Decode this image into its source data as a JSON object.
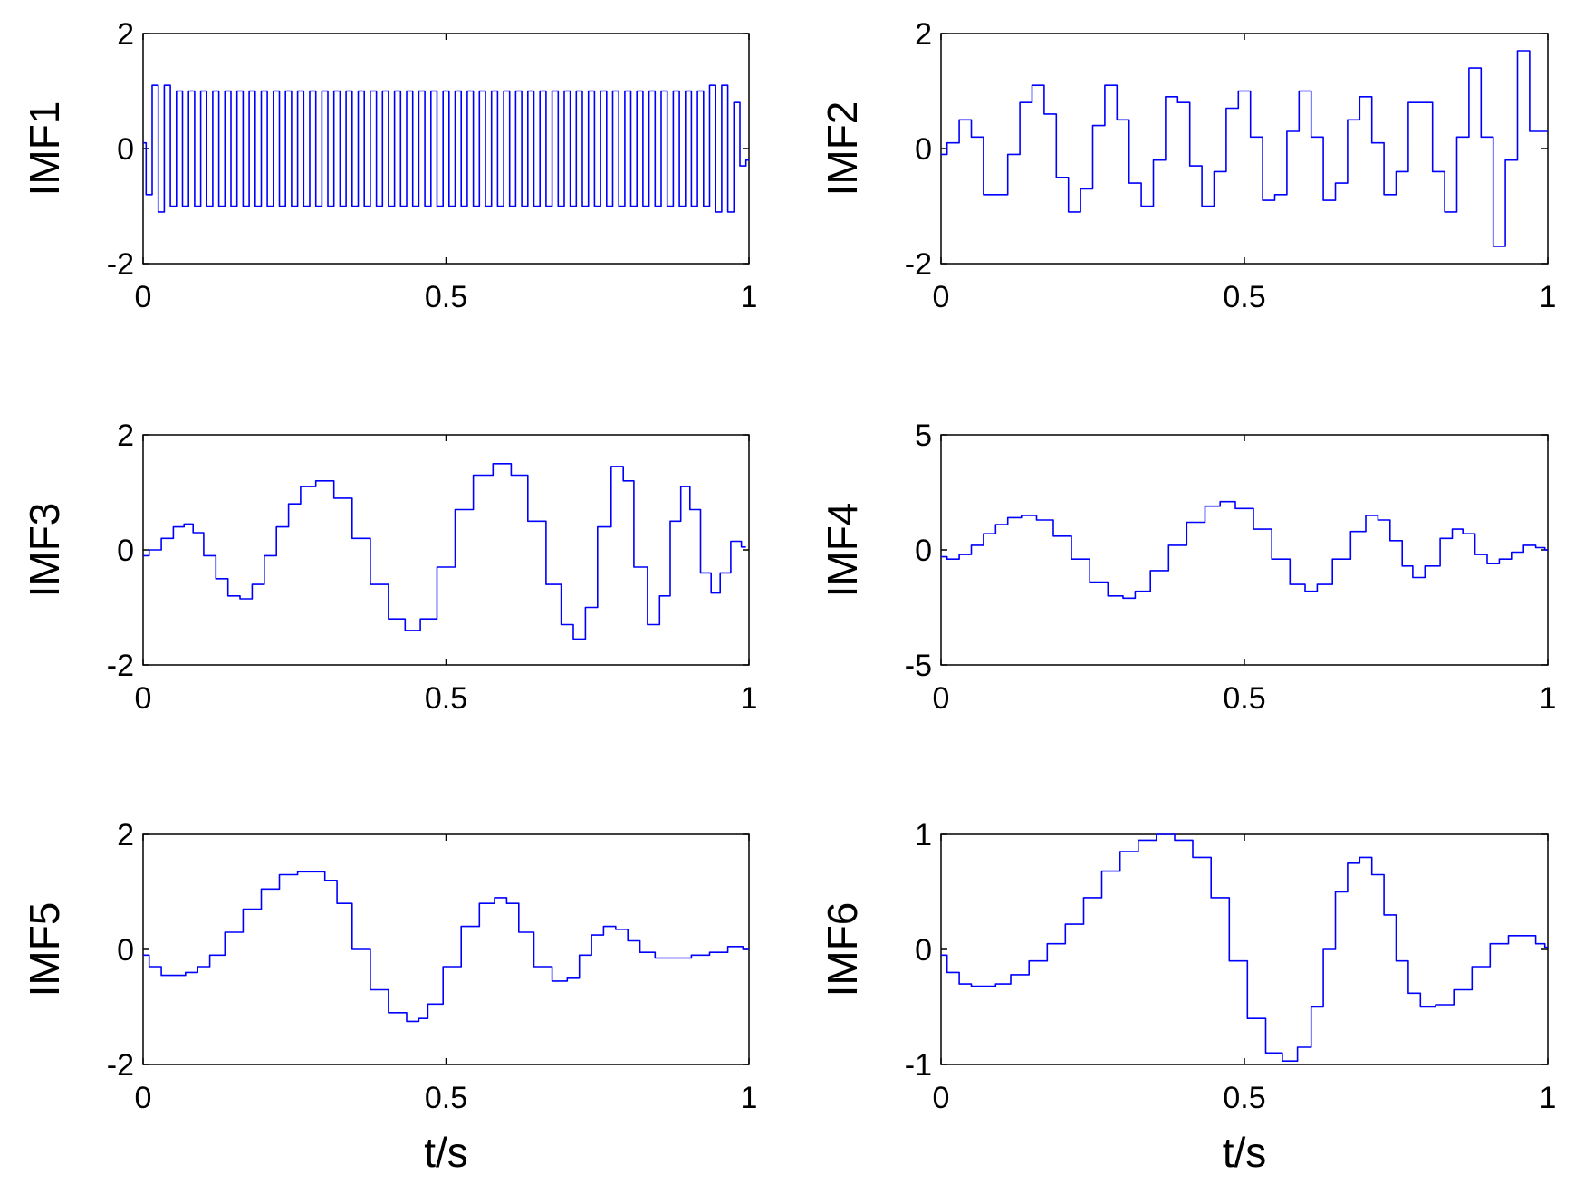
{
  "chart_data": [
    {
      "type": "line",
      "ylabel": "IMF1",
      "xlabel": "",
      "xlim": [
        0,
        1
      ],
      "ylim": [
        -2,
        2
      ],
      "xticks": [
        "0",
        "0.5",
        "1"
      ],
      "yticks": [
        "-2",
        "0",
        "2"
      ],
      "color": "#0000ff",
      "x": [
        0,
        0.01,
        0.02,
        0.03,
        0.04,
        0.05,
        0.06,
        0.07,
        0.08,
        0.09,
        0.1,
        0.11,
        0.12,
        0.13,
        0.14,
        0.15,
        0.16,
        0.17,
        0.18,
        0.19,
        0.2,
        0.21,
        0.22,
        0.23,
        0.24,
        0.25,
        0.26,
        0.27,
        0.28,
        0.29,
        0.3,
        0.31,
        0.32,
        0.33,
        0.34,
        0.35,
        0.36,
        0.37,
        0.38,
        0.39,
        0.4,
        0.41,
        0.42,
        0.43,
        0.44,
        0.45,
        0.46,
        0.47,
        0.48,
        0.49,
        0.5,
        0.51,
        0.52,
        0.53,
        0.54,
        0.55,
        0.56,
        0.57,
        0.58,
        0.59,
        0.6,
        0.61,
        0.62,
        0.63,
        0.64,
        0.65,
        0.66,
        0.67,
        0.68,
        0.69,
        0.7,
        0.71,
        0.72,
        0.73,
        0.74,
        0.75,
        0.76,
        0.77,
        0.78,
        0.79,
        0.8,
        0.81,
        0.82,
        0.83,
        0.84,
        0.85,
        0.86,
        0.87,
        0.88,
        0.89,
        0.9,
        0.91,
        0.92,
        0.93,
        0.94,
        0.95,
        0.96,
        0.97,
        0.98,
        0.99,
        1.0
      ],
      "values": [
        0.1,
        -0.8,
        1.1,
        -1.1,
        1.1,
        -1.0,
        1.0,
        -1.0,
        1.0,
        -1.0,
        1.0,
        -1.0,
        1.0,
        -1.0,
        1.0,
        -1.0,
        1.0,
        -1.0,
        1.0,
        -1.0,
        1.0,
        -1.0,
        1.0,
        -1.0,
        1.0,
        -1.0,
        1.0,
        -1.0,
        1.0,
        -1.0,
        1.0,
        -1.0,
        1.0,
        -1.0,
        1.0,
        -1.0,
        1.0,
        -1.0,
        1.0,
        -1.0,
        1.0,
        -1.0,
        1.0,
        -1.0,
        1.0,
        -1.0,
        1.0,
        -1.0,
        1.0,
        -1.0,
        1.0,
        -1.0,
        1.0,
        -1.0,
        1.0,
        -1.0,
        1.0,
        -1.0,
        1.0,
        -1.0,
        1.0,
        -1.0,
        1.0,
        -1.0,
        1.0,
        -1.0,
        1.0,
        -1.0,
        1.0,
        -1.0,
        1.0,
        -1.0,
        1.0,
        -1.0,
        1.0,
        -1.0,
        1.0,
        -1.0,
        1.0,
        -1.0,
        1.0,
        -1.0,
        1.0,
        -1.0,
        1.0,
        -1.0,
        1.0,
        -1.0,
        1.0,
        -1.0,
        1.0,
        -1.0,
        1.0,
        -1.0,
        1.1,
        -1.1,
        1.1,
        -1.1,
        0.8,
        -0.3,
        -0.2
      ]
    },
    {
      "type": "line",
      "ylabel": "IMF2",
      "xlabel": "",
      "xlim": [
        0,
        1
      ],
      "ylim": [
        -2,
        2
      ],
      "xticks": [
        "0",
        "0.5",
        "1"
      ],
      "yticks": [
        "-2",
        "0",
        "2"
      ],
      "color": "#0000ff",
      "x": [
        0,
        0.02,
        0.04,
        0.06,
        0.08,
        0.1,
        0.12,
        0.14,
        0.16,
        0.18,
        0.2,
        0.22,
        0.24,
        0.26,
        0.28,
        0.3,
        0.32,
        0.34,
        0.36,
        0.38,
        0.4,
        0.42,
        0.44,
        0.46,
        0.48,
        0.5,
        0.52,
        0.54,
        0.56,
        0.58,
        0.6,
        0.62,
        0.64,
        0.66,
        0.68,
        0.7,
        0.72,
        0.74,
        0.76,
        0.78,
        0.8,
        0.82,
        0.84,
        0.86,
        0.88,
        0.9,
        0.92,
        0.94,
        0.96,
        0.98,
        1.0
      ],
      "values": [
        -0.1,
        0.1,
        0.5,
        0.2,
        -0.8,
        -0.8,
        -0.1,
        0.8,
        1.1,
        0.6,
        -0.5,
        -1.1,
        -0.7,
        0.4,
        1.1,
        0.5,
        -0.6,
        -1.0,
        -0.2,
        0.9,
        0.8,
        -0.3,
        -1.0,
        -0.4,
        0.7,
        1.0,
        0.2,
        -0.9,
        -0.8,
        0.3,
        1.0,
        0.2,
        -0.9,
        -0.6,
        0.5,
        0.9,
        0.1,
        -0.8,
        -0.4,
        0.8,
        0.8,
        -0.4,
        -1.1,
        0.2,
        1.4,
        0.2,
        -1.7,
        -0.2,
        1.7,
        0.3,
        0.3
      ]
    },
    {
      "type": "line",
      "ylabel": "IMF3",
      "xlabel": "",
      "xlim": [
        0,
        1
      ],
      "ylim": [
        -2,
        2
      ],
      "xticks": [
        "0",
        "0.5",
        "1"
      ],
      "yticks": [
        "-2",
        "0",
        "2"
      ],
      "color": "#0000ff",
      "x": [
        0,
        0.02,
        0.04,
        0.06,
        0.075,
        0.09,
        0.11,
        0.13,
        0.15,
        0.17,
        0.19,
        0.21,
        0.23,
        0.25,
        0.27,
        0.3,
        0.33,
        0.36,
        0.39,
        0.42,
        0.445,
        0.47,
        0.5,
        0.53,
        0.56,
        0.595,
        0.62,
        0.65,
        0.68,
        0.7,
        0.72,
        0.74,
        0.76,
        0.785,
        0.8,
        0.82,
        0.845,
        0.86,
        0.88,
        0.895,
        0.91,
        0.93,
        0.945,
        0.96,
        0.98,
        0.995
      ],
      "values": [
        -0.1,
        0.0,
        0.2,
        0.4,
        0.45,
        0.3,
        -0.1,
        -0.5,
        -0.8,
        -0.85,
        -0.6,
        -0.1,
        0.4,
        0.8,
        1.1,
        1.2,
        0.9,
        0.2,
        -0.6,
        -1.2,
        -1.4,
        -1.2,
        -0.3,
        0.7,
        1.3,
        1.5,
        1.3,
        0.5,
        -0.6,
        -1.3,
        -1.55,
        -1.0,
        0.4,
        1.45,
        1.2,
        -0.3,
        -1.3,
        -0.8,
        0.5,
        1.1,
        0.7,
        -0.4,
        -0.75,
        -0.4,
        0.15,
        0.05
      ]
    },
    {
      "type": "line",
      "ylabel": "IMF4",
      "xlabel": "",
      "xlim": [
        0,
        1
      ],
      "ylim": [
        -5,
        5
      ],
      "xticks": [
        "0",
        "0.5",
        "1"
      ],
      "yticks": [
        "-5",
        "0",
        "5"
      ],
      "color": "#0000ff",
      "x": [
        0,
        0.02,
        0.04,
        0.06,
        0.08,
        0.1,
        0.12,
        0.145,
        0.17,
        0.2,
        0.23,
        0.26,
        0.29,
        0.31,
        0.33,
        0.36,
        0.39,
        0.42,
        0.45,
        0.47,
        0.5,
        0.53,
        0.56,
        0.59,
        0.61,
        0.63,
        0.66,
        0.69,
        0.71,
        0.73,
        0.75,
        0.77,
        0.785,
        0.81,
        0.835,
        0.85,
        0.87,
        0.89,
        0.91,
        0.93,
        0.95,
        0.97,
        0.99,
        1.0
      ],
      "values": [
        -0.3,
        -0.4,
        -0.2,
        0.2,
        0.7,
        1.1,
        1.4,
        1.5,
        1.3,
        0.6,
        -0.4,
        -1.4,
        -2.0,
        -2.1,
        -1.8,
        -0.9,
        0.2,
        1.2,
        1.9,
        2.1,
        1.8,
        0.9,
        -0.4,
        -1.5,
        -1.8,
        -1.5,
        -0.4,
        0.8,
        1.5,
        1.3,
        0.4,
        -0.7,
        -1.2,
        -0.7,
        0.5,
        0.9,
        0.7,
        -0.2,
        -0.6,
        -0.4,
        -0.1,
        0.2,
        0.1,
        0.0
      ]
    },
    {
      "type": "line",
      "ylabel": "IMF5",
      "xlabel": "t/s",
      "xlim": [
        0,
        1
      ],
      "ylim": [
        -2,
        2
      ],
      "xticks": [
        "0",
        "0.5",
        "1"
      ],
      "yticks": [
        "-2",
        "0",
        "2"
      ],
      "color": "#0000ff",
      "x": [
        0,
        0.02,
        0.04,
        0.06,
        0.08,
        0.1,
        0.12,
        0.15,
        0.18,
        0.21,
        0.24,
        0.27,
        0.29,
        0.31,
        0.33,
        0.36,
        0.39,
        0.42,
        0.45,
        0.46,
        0.48,
        0.51,
        0.54,
        0.57,
        0.59,
        0.61,
        0.63,
        0.66,
        0.69,
        0.71,
        0.73,
        0.75,
        0.77,
        0.79,
        0.81,
        0.83,
        0.86,
        0.89,
        0.92,
        0.95,
        0.98,
        1.0
      ],
      "values": [
        -0.1,
        -0.3,
        -0.45,
        -0.45,
        -0.4,
        -0.3,
        -0.1,
        0.3,
        0.7,
        1.05,
        1.3,
        1.35,
        1.35,
        1.2,
        0.8,
        0.0,
        -0.7,
        -1.1,
        -1.25,
        -1.2,
        -0.95,
        -0.3,
        0.4,
        0.8,
        0.9,
        0.8,
        0.3,
        -0.3,
        -0.55,
        -0.5,
        -0.1,
        0.25,
        0.4,
        0.35,
        0.15,
        -0.05,
        -0.15,
        -0.15,
        -0.1,
        -0.05,
        0.05,
        0.0
      ]
    },
    {
      "type": "line",
      "ylabel": "IMF6",
      "xlabel": "t/s",
      "xlim": [
        0,
        1
      ],
      "ylim": [
        -1,
        1
      ],
      "xticks": [
        "0",
        "0.5",
        "1"
      ],
      "yticks": [
        "-1",
        "0",
        "1"
      ],
      "color": "#0000ff",
      "x": [
        0,
        0.02,
        0.04,
        0.06,
        0.08,
        0.1,
        0.13,
        0.16,
        0.19,
        0.22,
        0.25,
        0.28,
        0.31,
        0.34,
        0.37,
        0.4,
        0.43,
        0.46,
        0.49,
        0.52,
        0.55,
        0.575,
        0.6,
        0.62,
        0.64,
        0.66,
        0.68,
        0.7,
        0.72,
        0.74,
        0.76,
        0.78,
        0.8,
        0.83,
        0.86,
        0.89,
        0.92,
        0.95,
        0.97,
        0.99,
        1.0
      ],
      "values": [
        -0.05,
        -0.2,
        -0.3,
        -0.32,
        -0.32,
        -0.3,
        -0.22,
        -0.1,
        0.05,
        0.22,
        0.45,
        0.68,
        0.85,
        0.95,
        1.0,
        0.95,
        0.8,
        0.45,
        -0.1,
        -0.6,
        -0.9,
        -0.97,
        -0.85,
        -0.5,
        0.0,
        0.5,
        0.75,
        0.8,
        0.65,
        0.3,
        -0.1,
        -0.38,
        -0.5,
        -0.48,
        -0.35,
        -0.15,
        0.05,
        0.12,
        0.12,
        0.05,
        0.02
      ]
    }
  ]
}
